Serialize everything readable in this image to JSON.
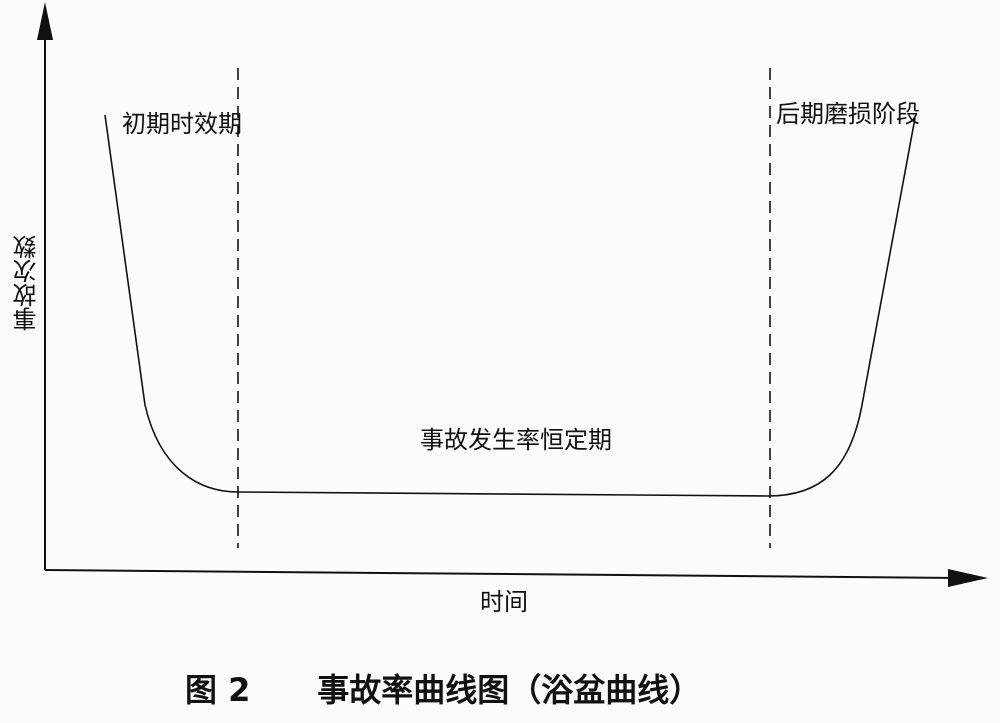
{
  "diagram": {
    "y_axis_label": "事故次数",
    "x_axis_label": "时间",
    "regions": {
      "early": "初期时效期",
      "constant": "事故发生率恒定期",
      "late": "后期磨损阶段"
    },
    "caption": {
      "number": "图 2",
      "title": "事故率曲线图（浴盆曲线）"
    }
  }
}
